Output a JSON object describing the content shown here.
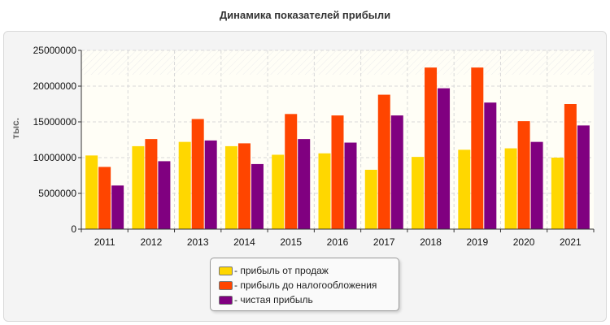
{
  "chart_data": {
    "type": "bar",
    "title": "Динамика показателей прибыли",
    "xlabel": "",
    "ylabel": "тыс.",
    "ylim": [
      0,
      25000000
    ],
    "yticks": [
      0,
      5000000,
      10000000,
      15000000,
      20000000,
      25000000
    ],
    "grid": true,
    "legend_position": "bottom",
    "categories": [
      "2011",
      "2012",
      "2013",
      "2014",
      "2015",
      "2016",
      "2017",
      "2018",
      "2019",
      "2020",
      "2021"
    ],
    "series": [
      {
        "name": "- прибыль от продаж",
        "color": "#ffd700",
        "values": [
          10300000,
          11600000,
          12200000,
          11600000,
          10400000,
          10600000,
          8300000,
          10100000,
          11100000,
          11300000,
          10000000
        ]
      },
      {
        "name": "- прибыль до налогообложения",
        "color": "#ff4500",
        "values": [
          8700000,
          12600000,
          15400000,
          12000000,
          16100000,
          15900000,
          18800000,
          22600000,
          22600000,
          15100000,
          17500000
        ]
      },
      {
        "name": "- чистая прибыль",
        "color": "#800080",
        "values": [
          6100000,
          9500000,
          12400000,
          9100000,
          12600000,
          12100000,
          15900000,
          19700000,
          17700000,
          12200000,
          14500000
        ]
      }
    ]
  }
}
